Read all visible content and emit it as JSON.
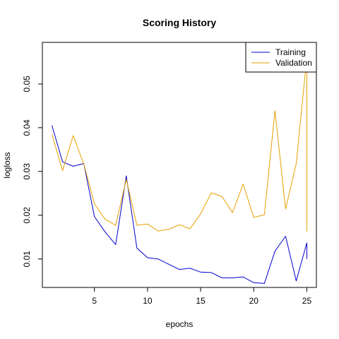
{
  "chart_data": {
    "type": "line",
    "title": "Scoring History",
    "xlabel": "epochs",
    "ylabel": "logloss",
    "xlim": [
      0.1,
      25.9
    ],
    "ylim": [
      0.0035,
      0.0595
    ],
    "x_ticks": [
      5,
      10,
      15,
      20,
      25
    ],
    "y_ticks": [
      0.01,
      0.02,
      0.03,
      0.04,
      0.05
    ],
    "grid": false,
    "legend_position": "top-right",
    "x": [
      1,
      2,
      3,
      4,
      5,
      6,
      7,
      8,
      9,
      10,
      11,
      12,
      13,
      14,
      15,
      16,
      17,
      18,
      19,
      20,
      21,
      22,
      23,
      24,
      25,
      25
    ],
    "series": [
      {
        "name": "Training",
        "color": "#0000cd",
        "values": [
          0.0405,
          0.0322,
          0.0312,
          0.0318,
          0.0197,
          0.0162,
          0.0133,
          0.029,
          0.0125,
          0.0103,
          0.01,
          0.0088,
          0.0076,
          0.0079,
          0.007,
          0.0069,
          0.0057,
          0.0057,
          0.0059,
          0.0046,
          0.0044,
          0.0118,
          0.0152,
          0.005,
          0.0137,
          0.01
        ]
      },
      {
        "name": "Validation",
        "color": "#e6a000",
        "values": [
          0.0385,
          0.0302,
          0.0382,
          0.0317,
          0.0226,
          0.0191,
          0.0177,
          0.0282,
          0.0177,
          0.018,
          0.0164,
          0.0168,
          0.0178,
          0.0169,
          0.0203,
          0.0251,
          0.0243,
          0.0206,
          0.0271,
          0.0195,
          0.0201,
          0.0439,
          0.0214,
          0.0318,
          0.0562,
          0.0163
        ]
      }
    ]
  }
}
